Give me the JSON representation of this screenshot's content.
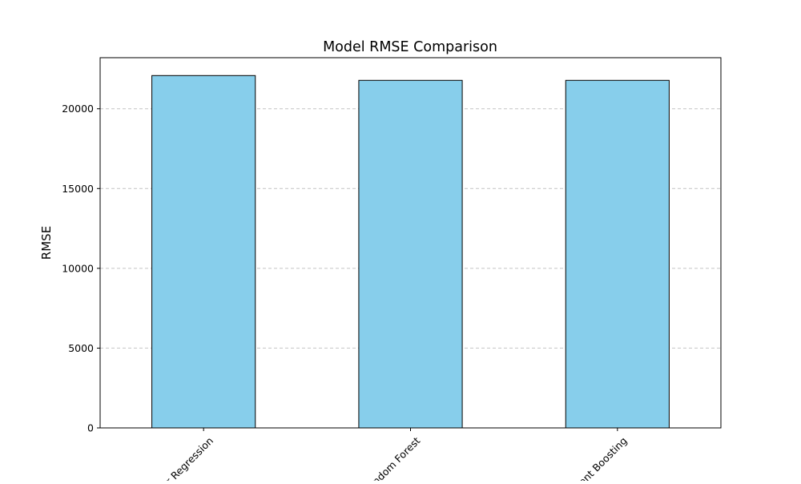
{
  "chart_data": {
    "type": "bar",
    "title": "Model RMSE Comparison",
    "xlabel": "",
    "ylabel": "RMSE",
    "categories": [
      "Linear Regression",
      "Random Forest",
      "Gradient Boosting"
    ],
    "values": [
      22080,
      21780,
      21780
    ],
    "ylim": [
      0,
      23200
    ],
    "yticks": [
      0,
      5000,
      10000,
      15000,
      20000
    ],
    "grid": {
      "y": true,
      "x": false
    },
    "legend": "none",
    "x_tick_rotation_deg": 45,
    "colors": {
      "bar_fill": "#87CEEB",
      "bar_edge": "#000000",
      "grid": "#c4c4c4",
      "axis": "#000000"
    }
  }
}
